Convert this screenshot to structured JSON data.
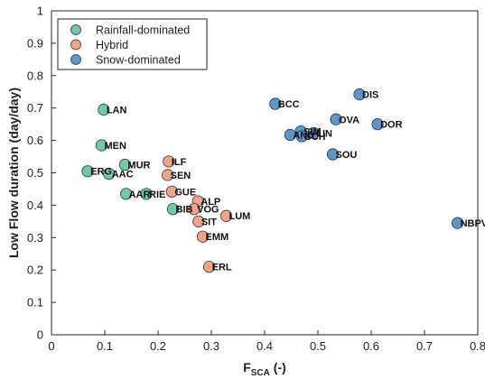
{
  "chart_data": {
    "type": "scatter",
    "xlabel": "F",
    "xlabel_sub": "SCA",
    "xlabel_unit": " (-)",
    "ylabel": "Low Flow duration (day/day)",
    "xlim": [
      0,
      0.8
    ],
    "ylim": [
      0,
      1
    ],
    "xticks": [
      "0",
      "0.1",
      "0.2",
      "0.3",
      "0.4",
      "0.5",
      "0.6",
      "0.7",
      "0.8"
    ],
    "yticks": [
      "0",
      "0.1",
      "0.2",
      "0.3",
      "0.4",
      "0.5",
      "0.6",
      "0.7",
      "0.8",
      "0.9",
      "1"
    ],
    "grid": false,
    "legend_position": "top-left",
    "series": [
      {
        "name": "Rainfall-dominated",
        "color": "#6ecba4",
        "points": [
          {
            "label": "LAN",
            "x": 0.098,
            "y": 0.695
          },
          {
            "label": "MEN",
            "x": 0.094,
            "y": 0.585
          },
          {
            "label": "MUR",
            "x": 0.138,
            "y": 0.525
          },
          {
            "label": "ERG",
            "x": 0.068,
            "y": 0.505
          },
          {
            "label": "AAC",
            "x": 0.108,
            "y": 0.497
          },
          {
            "label": "AAR",
            "x": 0.14,
            "y": 0.435
          },
          {
            "label": "RIE",
            "x": 0.178,
            "y": 0.435
          },
          {
            "label": "BIB",
            "x": 0.228,
            "y": 0.388
          }
        ]
      },
      {
        "name": "Hybrid",
        "color": "#f2a489",
        "points": [
          {
            "label": "ILF",
            "x": 0.22,
            "y": 0.535
          },
          {
            "label": "SEN",
            "x": 0.218,
            "y": 0.493
          },
          {
            "label": "GUE",
            "x": 0.226,
            "y": 0.442
          },
          {
            "label": "ALP",
            "x": 0.275,
            "y": 0.412
          },
          {
            "label": "VOG",
            "x": 0.268,
            "y": 0.388
          },
          {
            "label": "LUM",
            "x": 0.328,
            "y": 0.367
          },
          {
            "label": "SIT",
            "x": 0.276,
            "y": 0.35
          },
          {
            "label": "EMM",
            "x": 0.284,
            "y": 0.303
          },
          {
            "label": "ERL",
            "x": 0.296,
            "y": 0.21
          }
        ]
      },
      {
        "name": "Snow-dominated",
        "color": "#5b97cf",
        "points": [
          {
            "label": "DIS",
            "x": 0.578,
            "y": 0.742
          },
          {
            "label": "BCC",
            "x": 0.42,
            "y": 0.713
          },
          {
            "label": "OVA",
            "x": 0.534,
            "y": 0.665
          },
          {
            "label": "DOR",
            "x": 0.612,
            "y": 0.65
          },
          {
            "label": "SIM",
            "x": 0.468,
            "y": 0.628
          },
          {
            "label": "LIN",
            "x": 0.492,
            "y": 0.623
          },
          {
            "label": "AND",
            "x": 0.448,
            "y": 0.617
          },
          {
            "label": "SCH",
            "x": 0.47,
            "y": 0.613
          },
          {
            "label": "SOU",
            "x": 0.528,
            "y": 0.557
          },
          {
            "label": "NBPV",
            "x": 0.762,
            "y": 0.345
          }
        ]
      }
    ]
  }
}
